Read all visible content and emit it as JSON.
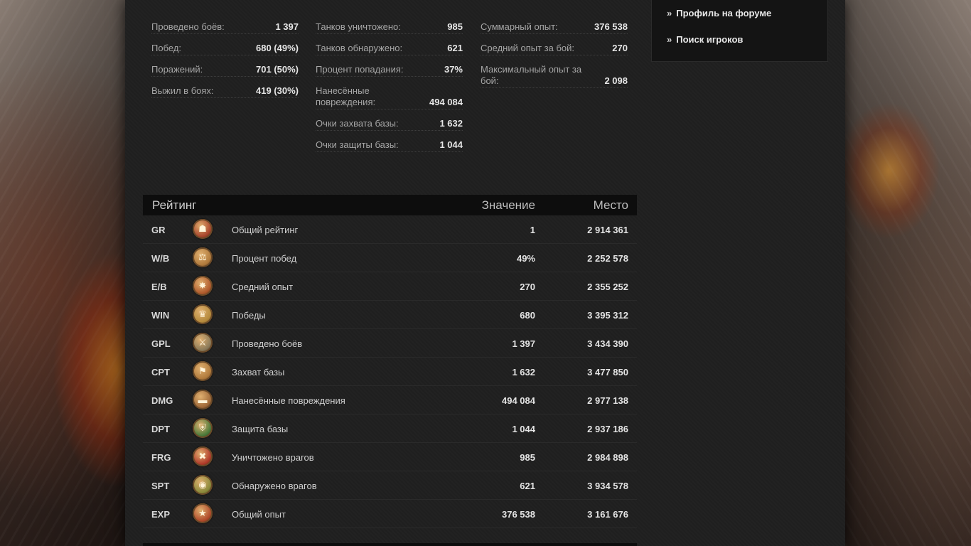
{
  "stats": {
    "col1": [
      {
        "label": "Проведено боёв:",
        "value": "1 397"
      },
      {
        "label": "Побед:",
        "value": "680 (49%)"
      },
      {
        "label": "Поражений:",
        "value": "701 (50%)"
      },
      {
        "label": "Выжил в боях:",
        "value": "419 (30%)"
      }
    ],
    "col2": [
      {
        "label": "Танков уничтожено:",
        "value": "985"
      },
      {
        "label": "Танков обнаружено:",
        "value": "621"
      },
      {
        "label": "Процент попадания:",
        "value": "37%"
      },
      {
        "label": "Нанесённые повреждения:",
        "value": "494 084"
      },
      {
        "label": "Очки захвата базы:",
        "value": "1 632"
      },
      {
        "label": "Очки защиты базы:",
        "value": "1 044"
      }
    ],
    "col3": [
      {
        "label": "Суммарный опыт:",
        "value": "376 538"
      },
      {
        "label": "Средний опыт за бой:",
        "value": "270"
      },
      {
        "label": "Максимальный опыт за бой:",
        "value": "2 098"
      }
    ]
  },
  "links": {
    "forum_profile": "Профиль на форуме",
    "player_search": "Поиск игроков",
    "chevron": "»"
  },
  "rating": {
    "header": {
      "title": "Рейтинг",
      "value": "Значение",
      "place": "Место"
    },
    "rows": [
      {
        "code": "GR",
        "icon": "helmet-icon",
        "glyph": "☗",
        "name": "Общий рейтинг",
        "value": "1",
        "place": "2 914 361"
      },
      {
        "code": "W/B",
        "icon": "scales-icon",
        "glyph": "⚖",
        "name": "Процент побед",
        "value": "49%",
        "place": "2 252 578"
      },
      {
        "code": "E/B",
        "icon": "star-burst-icon",
        "glyph": "✸",
        "name": "Средний опыт",
        "value": "270",
        "place": "2 355 252"
      },
      {
        "code": "WIN",
        "icon": "trophy-icon",
        "glyph": "♛",
        "name": "Победы",
        "value": "680",
        "place": "3 395 312"
      },
      {
        "code": "GPL",
        "icon": "crossed-swords-icon",
        "glyph": "⚔",
        "name": "Проведено боёв",
        "value": "1 397",
        "place": "3 434 390"
      },
      {
        "code": "CPT",
        "icon": "flag-icon",
        "glyph": "⚑",
        "name": "Захват базы",
        "value": "1 632",
        "place": "3 477 850"
      },
      {
        "code": "DMG",
        "icon": "tank-icon",
        "glyph": "▬",
        "name": "Нанесённые повреждения",
        "value": "494 084",
        "place": "2 977 138"
      },
      {
        "code": "DPT",
        "icon": "shield-icon",
        "glyph": "⛨",
        "name": "Защита базы",
        "value": "1 044",
        "place": "2 937 186"
      },
      {
        "code": "FRG",
        "icon": "crossed-tank-icon",
        "glyph": "✖",
        "name": "Уничтожено врагов",
        "value": "985",
        "place": "2 984 898"
      },
      {
        "code": "SPT",
        "icon": "binoculars-icon",
        "glyph": "◉",
        "name": "Обнаружено врагов",
        "value": "621",
        "place": "3 934 578"
      },
      {
        "code": "EXP",
        "icon": "red-star-icon",
        "glyph": "★",
        "name": "Общий опыт",
        "value": "376 538",
        "place": "3 161 676"
      }
    ]
  },
  "colors": {
    "panel_bg": "#1f1f1f",
    "header_bg": "#0d0d0d",
    "accent_bronze": "#b07a3c"
  }
}
